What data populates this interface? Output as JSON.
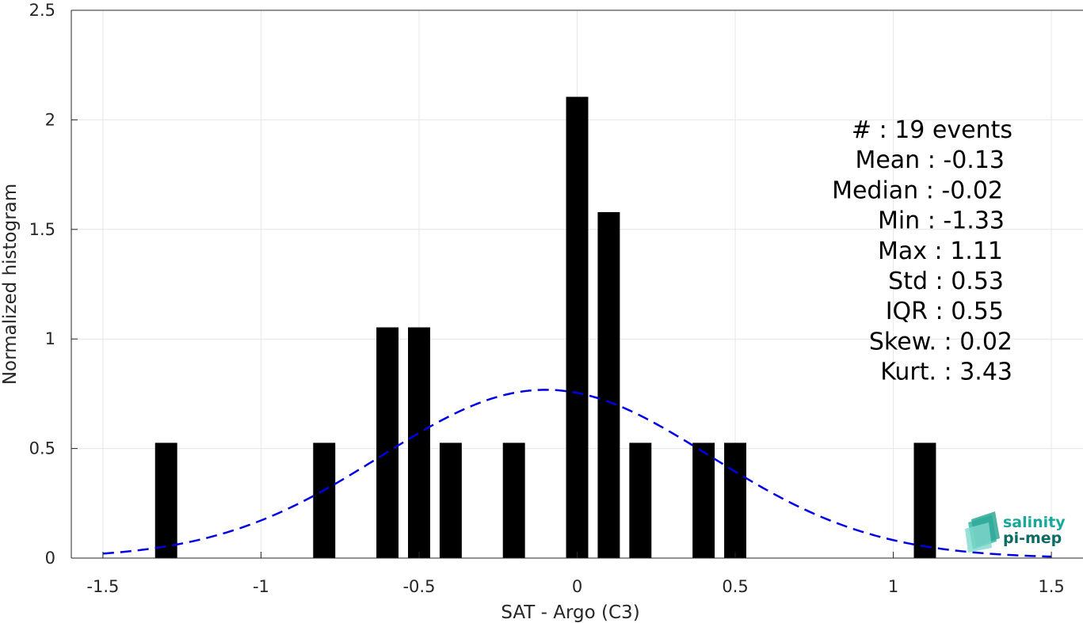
{
  "chart_data": {
    "type": "bar",
    "xlabel": "SAT - Argo (C3)",
    "ylabel": "Normalized histogram",
    "xlim": [
      -1.6,
      1.6
    ],
    "ylim": [
      0,
      2.5
    ],
    "xticks": [
      "-1.5",
      "-1",
      "-0.5",
      "0",
      "0.5",
      "1",
      "1.5"
    ],
    "xtick_values": [
      -1.5,
      -1,
      -0.5,
      0,
      0.5,
      1,
      1.5
    ],
    "yticks": [
      "0",
      "0.5",
      "1",
      "1.5",
      "2",
      "2.5"
    ],
    "ytick_values": [
      0,
      0.5,
      1,
      1.5,
      2,
      2.5
    ],
    "grid": true,
    "bar_width": 0.07,
    "bar_color": "#000000",
    "bars": [
      {
        "x": -1.3,
        "y": 0.526
      },
      {
        "x": -0.8,
        "y": 0.526
      },
      {
        "x": -0.6,
        "y": 1.053
      },
      {
        "x": -0.5,
        "y": 1.053
      },
      {
        "x": -0.4,
        "y": 0.526
      },
      {
        "x": -0.2,
        "y": 0.526
      },
      {
        "x": 0.0,
        "y": 2.105
      },
      {
        "x": 0.1,
        "y": 1.579
      },
      {
        "x": 0.2,
        "y": 0.526
      },
      {
        "x": 0.4,
        "y": 0.526
      },
      {
        "x": 0.5,
        "y": 0.526
      },
      {
        "x": 1.1,
        "y": 0.526
      }
    ],
    "fit_curve": {
      "style": "dashed",
      "color": "#0000e6",
      "mean": -0.1,
      "std": 0.52,
      "x_range": [
        -1.5,
        1.5
      ]
    },
    "stats": [
      "#  : 19 events",
      "Mean : -0.13",
      "Median : -0.02",
      "Min : -1.33",
      "Max : 1.11",
      "Std : 0.53",
      "IQR : 0.55",
      "Skew. : 0.02",
      "Kurt. : 3.43"
    ]
  },
  "logo": {
    "line1": "salinity",
    "line2": "pi-mep",
    "color1": "#19a89a",
    "color2": "#0c6b63"
  }
}
